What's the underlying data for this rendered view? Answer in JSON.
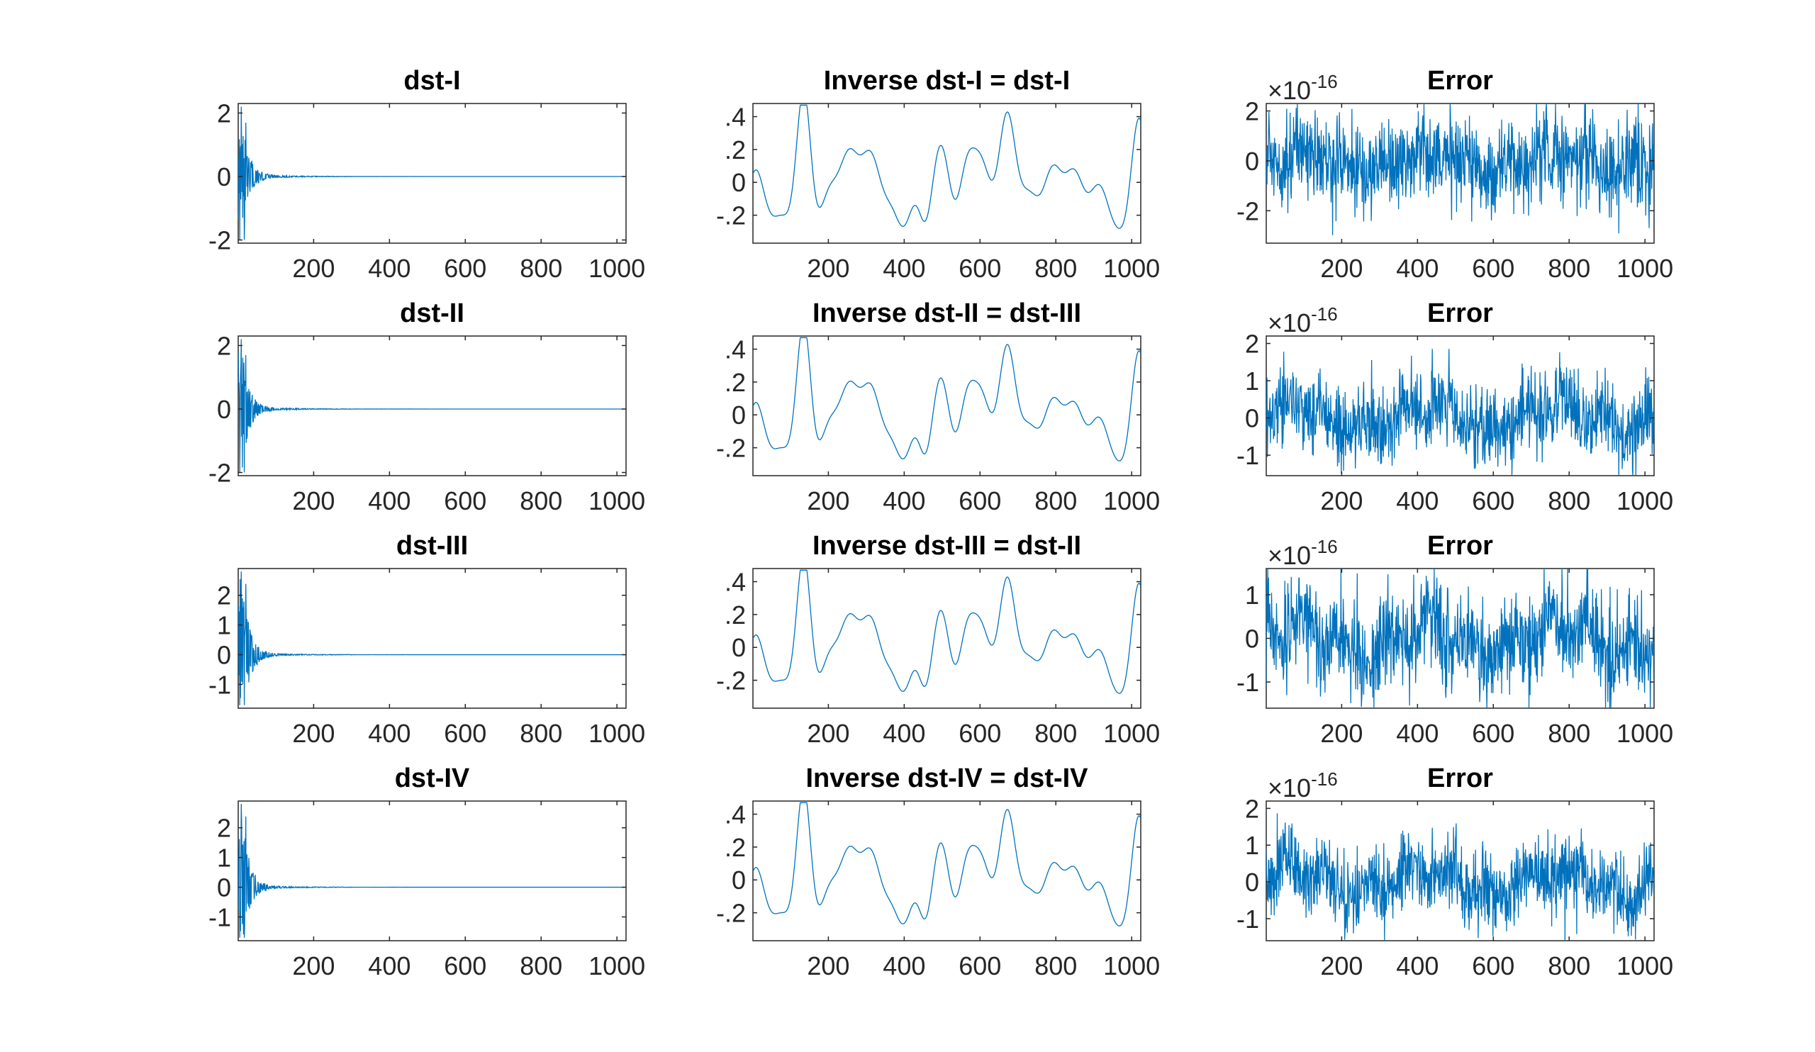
{
  "figure": {
    "line_color": "#0072BD",
    "axes_color": "#262626"
  },
  "chart_data": [
    {
      "type": "line",
      "title": "dst-I",
      "xlim": [
        1,
        1024
      ],
      "ylim": [
        -2.1,
        2.3
      ],
      "xticks": [
        200,
        400,
        600,
        800,
        1000
      ],
      "yticks": [
        -2,
        0,
        2
      ],
      "yexponent": "",
      "signal": "coefficients",
      "amp": 2.0
    },
    {
      "type": "line",
      "title": "Inverse dst-I = dst-I",
      "xlim": [
        1,
        1024
      ],
      "ylim": [
        -0.37,
        0.48
      ],
      "xticks": [
        200,
        400,
        600,
        800,
        1000
      ],
      "yticks": [
        -0.2,
        0,
        0.2,
        0.4
      ],
      "yexponent": "",
      "signal": "reconstruction"
    },
    {
      "type": "line",
      "title": "Error",
      "xlim": [
        1,
        1024
      ],
      "ylim": [
        -3.3,
        2.3
      ],
      "xticks": [
        200,
        400,
        600,
        800,
        1000
      ],
      "yticks": [
        -2,
        0,
        2
      ],
      "yexponent": "-16",
      "signal": "error",
      "noise": 0.9
    },
    {
      "type": "line",
      "title": "dst-II",
      "xlim": [
        1,
        1024
      ],
      "ylim": [
        -2.1,
        2.3
      ],
      "xticks": [
        200,
        400,
        600,
        800,
        1000
      ],
      "yticks": [
        -2,
        0,
        2
      ],
      "yexponent": "",
      "signal": "coefficients",
      "amp": 2.0
    },
    {
      "type": "line",
      "title": "Inverse dst-II = dst-III",
      "xlim": [
        1,
        1024
      ],
      "ylim": [
        -0.37,
        0.48
      ],
      "xticks": [
        200,
        400,
        600,
        800,
        1000
      ],
      "yticks": [
        -0.2,
        0,
        0.2,
        0.4
      ],
      "yexponent": "",
      "signal": "reconstruction"
    },
    {
      "type": "line",
      "title": "Error",
      "xlim": [
        1,
        1024
      ],
      "ylim": [
        -1.55,
        2.2
      ],
      "xticks": [
        200,
        400,
        600,
        800,
        1000
      ],
      "yticks": [
        -1,
        0,
        1,
        2
      ],
      "yexponent": "-16",
      "signal": "error",
      "noise": 0.55
    },
    {
      "type": "line",
      "title": "dst-III",
      "xlim": [
        1,
        1024
      ],
      "ylim": [
        -1.8,
        2.9
      ],
      "xticks": [
        200,
        400,
        600,
        800,
        1000
      ],
      "yticks": [
        -1,
        0,
        1,
        2
      ],
      "yexponent": "",
      "signal": "coefficients",
      "amp": 2.8
    },
    {
      "type": "line",
      "title": "Inverse dst-III = dst-II",
      "xlim": [
        1,
        1024
      ],
      "ylim": [
        -0.37,
        0.48
      ],
      "xticks": [
        200,
        400,
        600,
        800,
        1000
      ],
      "yticks": [
        -0.2,
        0,
        0.2,
        0.4
      ],
      "yexponent": "",
      "signal": "reconstruction"
    },
    {
      "type": "line",
      "title": "Error",
      "xlim": [
        1,
        1024
      ],
      "ylim": [
        -1.6,
        1.6
      ],
      "xticks": [
        200,
        400,
        600,
        800,
        1000
      ],
      "yticks": [
        -1,
        0,
        1
      ],
      "yexponent": "-16",
      "signal": "error",
      "noise": 0.55
    },
    {
      "type": "line",
      "title": "dst-IV",
      "xlim": [
        1,
        1024
      ],
      "ylim": [
        -1.8,
        2.9
      ],
      "xticks": [
        200,
        400,
        600,
        800,
        1000
      ],
      "yticks": [
        -1,
        0,
        1,
        2
      ],
      "yexponent": "",
      "signal": "coefficients",
      "amp": 2.8
    },
    {
      "type": "line",
      "title": "Inverse dst-IV = dst-IV",
      "xlim": [
        1,
        1024
      ],
      "ylim": [
        -0.37,
        0.48
      ],
      "xticks": [
        200,
        400,
        600,
        800,
        1000
      ],
      "yticks": [
        -0.2,
        0,
        0.2,
        0.4
      ],
      "yexponent": "",
      "signal": "reconstruction"
    },
    {
      "type": "line",
      "title": "Error",
      "xlim": [
        1,
        1024
      ],
      "ylim": [
        -1.6,
        2.2
      ],
      "xticks": [
        200,
        400,
        600,
        800,
        1000
      ],
      "yticks": [
        -1,
        0,
        1,
        2
      ],
      "yexponent": "-16",
      "signal": "error",
      "noise": 0.55
    }
  ]
}
